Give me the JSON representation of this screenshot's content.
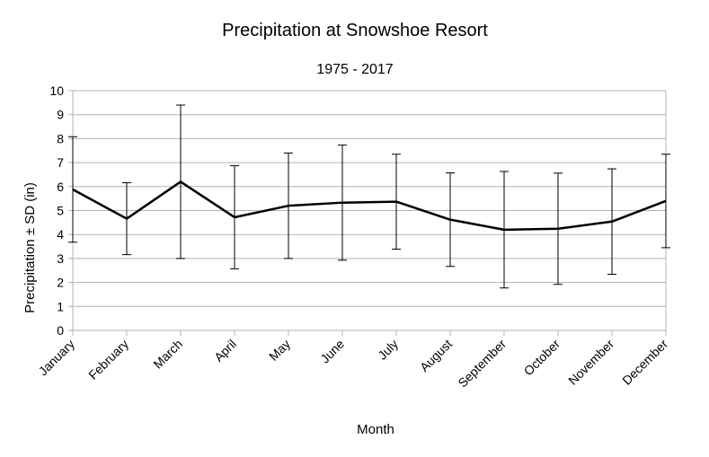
{
  "chart_data": {
    "type": "line",
    "title": "Precipitation at Snowshoe Resort",
    "subtitle": "1975 - 2017",
    "xlabel": "Month",
    "ylabel": "Precipitation ± SD (in)",
    "ylim": [
      0,
      10
    ],
    "yticks": [
      0,
      1,
      2,
      3,
      4,
      5,
      6,
      7,
      8,
      9,
      10
    ],
    "grid": true,
    "categories": [
      "January",
      "February",
      "March",
      "April",
      "May",
      "June",
      "July",
      "August",
      "September",
      "October",
      "November",
      "December"
    ],
    "series": [
      {
        "values": [
          5.88,
          4.66,
          6.2,
          4.72,
          5.2,
          5.33,
          5.37,
          4.62,
          4.2,
          4.24,
          4.54,
          5.4
        ],
        "error": [
          2.2,
          1.5,
          3.2,
          2.15,
          2.2,
          2.4,
          1.98,
          1.95,
          2.43,
          2.32,
          2.2,
          1.95
        ],
        "color": "#000000"
      }
    ]
  }
}
